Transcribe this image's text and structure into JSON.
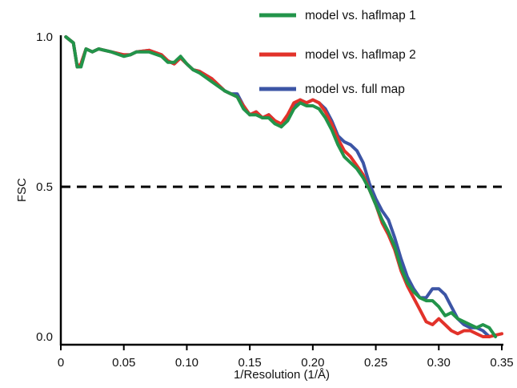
{
  "chart_data": {
    "type": "line",
    "xlabel": "1/Resolution  (1/Å)",
    "ylabel": "FSC",
    "xlim": [
      0,
      0.35
    ],
    "ylim": [
      0,
      1
    ],
    "xticks": [
      "0",
      "0.05",
      "0.10",
      "0.15",
      "0.20",
      "0.25",
      "0.30",
      "0.35"
    ],
    "yticks": [
      "0.0",
      "0.5",
      "1.0"
    ],
    "legend_position": "top-right",
    "threshold": {
      "y": 0.5,
      "style": "dashed",
      "color": "#000000"
    },
    "series": [
      {
        "name": "model vs. full map",
        "color": "#3c55a5",
        "points": [
          [
            0.004,
            1.0
          ],
          [
            0.01,
            0.98
          ],
          [
            0.013,
            0.9
          ],
          [
            0.016,
            0.91
          ],
          [
            0.02,
            0.96
          ],
          [
            0.025,
            0.95
          ],
          [
            0.03,
            0.96
          ],
          [
            0.04,
            0.95
          ],
          [
            0.05,
            0.94
          ],
          [
            0.055,
            0.94
          ],
          [
            0.06,
            0.95
          ],
          [
            0.07,
            0.955
          ],
          [
            0.08,
            0.94
          ],
          [
            0.085,
            0.92
          ],
          [
            0.09,
            0.91
          ],
          [
            0.095,
            0.93
          ],
          [
            0.1,
            0.91
          ],
          [
            0.105,
            0.89
          ],
          [
            0.11,
            0.885
          ],
          [
            0.12,
            0.86
          ],
          [
            0.13,
            0.82
          ],
          [
            0.135,
            0.81
          ],
          [
            0.14,
            0.81
          ],
          [
            0.145,
            0.77
          ],
          [
            0.15,
            0.74
          ],
          [
            0.155,
            0.75
          ],
          [
            0.16,
            0.73
          ],
          [
            0.165,
            0.74
          ],
          [
            0.17,
            0.72
          ],
          [
            0.175,
            0.7
          ],
          [
            0.18,
            0.73
          ],
          [
            0.185,
            0.77
          ],
          [
            0.19,
            0.79
          ],
          [
            0.195,
            0.78
          ],
          [
            0.2,
            0.79
          ],
          [
            0.205,
            0.78
          ],
          [
            0.21,
            0.76
          ],
          [
            0.215,
            0.72
          ],
          [
            0.22,
            0.67
          ],
          [
            0.225,
            0.65
          ],
          [
            0.23,
            0.64
          ],
          [
            0.235,
            0.62
          ],
          [
            0.24,
            0.58
          ],
          [
            0.245,
            0.51
          ],
          [
            0.25,
            0.46
          ],
          [
            0.255,
            0.42
          ],
          [
            0.26,
            0.39
          ],
          [
            0.265,
            0.33
          ],
          [
            0.27,
            0.26
          ],
          [
            0.275,
            0.2
          ],
          [
            0.28,
            0.16
          ],
          [
            0.285,
            0.13
          ],
          [
            0.29,
            0.13
          ],
          [
            0.295,
            0.16
          ],
          [
            0.3,
            0.16
          ],
          [
            0.305,
            0.14
          ],
          [
            0.31,
            0.1
          ],
          [
            0.315,
            0.06
          ],
          [
            0.32,
            0.04
          ],
          [
            0.325,
            0.03
          ],
          [
            0.33,
            0.03
          ],
          [
            0.335,
            0.02
          ],
          [
            0.34,
            0.0
          ]
        ]
      },
      {
        "name": "model vs. haflmap 2",
        "color": "#e2322a",
        "points": [
          [
            0.004,
            1.0
          ],
          [
            0.01,
            0.98
          ],
          [
            0.013,
            0.9
          ],
          [
            0.016,
            0.91
          ],
          [
            0.02,
            0.96
          ],
          [
            0.025,
            0.95
          ],
          [
            0.03,
            0.96
          ],
          [
            0.04,
            0.95
          ],
          [
            0.05,
            0.94
          ],
          [
            0.055,
            0.94
          ],
          [
            0.06,
            0.95
          ],
          [
            0.07,
            0.955
          ],
          [
            0.08,
            0.94
          ],
          [
            0.085,
            0.92
          ],
          [
            0.09,
            0.91
          ],
          [
            0.095,
            0.93
          ],
          [
            0.1,
            0.91
          ],
          [
            0.105,
            0.89
          ],
          [
            0.11,
            0.885
          ],
          [
            0.12,
            0.86
          ],
          [
            0.13,
            0.82
          ],
          [
            0.135,
            0.81
          ],
          [
            0.14,
            0.8
          ],
          [
            0.145,
            0.77
          ],
          [
            0.15,
            0.74
          ],
          [
            0.155,
            0.75
          ],
          [
            0.16,
            0.73
          ],
          [
            0.165,
            0.74
          ],
          [
            0.17,
            0.72
          ],
          [
            0.175,
            0.71
          ],
          [
            0.18,
            0.74
          ],
          [
            0.185,
            0.78
          ],
          [
            0.19,
            0.79
          ],
          [
            0.195,
            0.78
          ],
          [
            0.2,
            0.79
          ],
          [
            0.205,
            0.78
          ],
          [
            0.21,
            0.75
          ],
          [
            0.215,
            0.71
          ],
          [
            0.22,
            0.66
          ],
          [
            0.225,
            0.62
          ],
          [
            0.23,
            0.6
          ],
          [
            0.235,
            0.57
          ],
          [
            0.24,
            0.54
          ],
          [
            0.245,
            0.49
          ],
          [
            0.25,
            0.44
          ],
          [
            0.255,
            0.38
          ],
          [
            0.26,
            0.34
          ],
          [
            0.265,
            0.29
          ],
          [
            0.27,
            0.22
          ],
          [
            0.275,
            0.17
          ],
          [
            0.28,
            0.13
          ],
          [
            0.285,
            0.09
          ],
          [
            0.29,
            0.05
          ],
          [
            0.295,
            0.04
          ],
          [
            0.3,
            0.06
          ],
          [
            0.305,
            0.04
          ],
          [
            0.31,
            0.02
          ],
          [
            0.315,
            0.01
          ],
          [
            0.32,
            0.02
          ],
          [
            0.325,
            0.02
          ],
          [
            0.33,
            0.01
          ],
          [
            0.335,
            0.0
          ],
          [
            0.34,
            0.0
          ],
          [
            0.345,
            0.005
          ],
          [
            0.35,
            0.01
          ]
        ]
      },
      {
        "name": "model vs. haflmap 1",
        "color": "#22944a",
        "points": [
          [
            0.004,
            1.0
          ],
          [
            0.01,
            0.98
          ],
          [
            0.013,
            0.9
          ],
          [
            0.016,
            0.9
          ],
          [
            0.02,
            0.96
          ],
          [
            0.025,
            0.95
          ],
          [
            0.03,
            0.96
          ],
          [
            0.04,
            0.95
          ],
          [
            0.05,
            0.935
          ],
          [
            0.055,
            0.94
          ],
          [
            0.06,
            0.95
          ],
          [
            0.07,
            0.95
          ],
          [
            0.08,
            0.935
          ],
          [
            0.085,
            0.915
          ],
          [
            0.09,
            0.915
          ],
          [
            0.095,
            0.935
          ],
          [
            0.1,
            0.91
          ],
          [
            0.105,
            0.89
          ],
          [
            0.11,
            0.88
          ],
          [
            0.12,
            0.85
          ],
          [
            0.13,
            0.82
          ],
          [
            0.135,
            0.81
          ],
          [
            0.14,
            0.8
          ],
          [
            0.145,
            0.76
          ],
          [
            0.15,
            0.74
          ],
          [
            0.155,
            0.74
          ],
          [
            0.16,
            0.73
          ],
          [
            0.165,
            0.73
          ],
          [
            0.17,
            0.71
          ],
          [
            0.175,
            0.7
          ],
          [
            0.18,
            0.72
          ],
          [
            0.185,
            0.76
          ],
          [
            0.19,
            0.78
          ],
          [
            0.195,
            0.77
          ],
          [
            0.2,
            0.77
          ],
          [
            0.205,
            0.76
          ],
          [
            0.21,
            0.73
          ],
          [
            0.215,
            0.69
          ],
          [
            0.22,
            0.64
          ],
          [
            0.225,
            0.6
          ],
          [
            0.23,
            0.58
          ],
          [
            0.235,
            0.56
          ],
          [
            0.24,
            0.53
          ],
          [
            0.245,
            0.49
          ],
          [
            0.25,
            0.44
          ],
          [
            0.255,
            0.39
          ],
          [
            0.26,
            0.35
          ],
          [
            0.265,
            0.3
          ],
          [
            0.27,
            0.23
          ],
          [
            0.275,
            0.18
          ],
          [
            0.28,
            0.15
          ],
          [
            0.285,
            0.13
          ],
          [
            0.29,
            0.12
          ],
          [
            0.295,
            0.12
          ],
          [
            0.3,
            0.1
          ],
          [
            0.305,
            0.07
          ],
          [
            0.31,
            0.08
          ],
          [
            0.315,
            0.06
          ],
          [
            0.32,
            0.05
          ],
          [
            0.325,
            0.04
          ],
          [
            0.33,
            0.03
          ],
          [
            0.335,
            0.04
          ],
          [
            0.34,
            0.03
          ],
          [
            0.345,
            0.0
          ]
        ]
      }
    ]
  }
}
